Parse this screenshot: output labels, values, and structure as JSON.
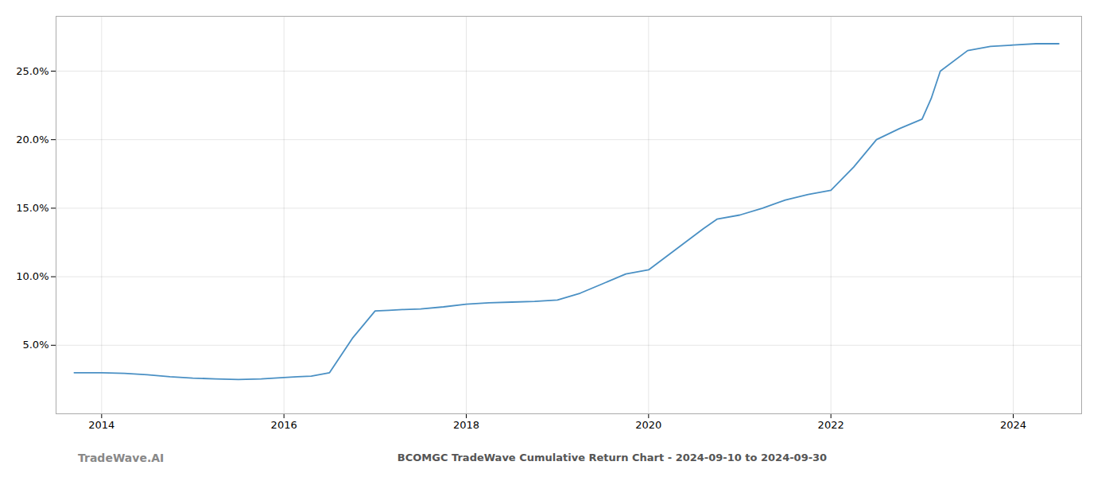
{
  "chart_data": {
    "type": "line",
    "title": "BCOMGC TradeWave Cumulative Return Chart - 2024-09-10 to 2024-09-30",
    "annotations": [
      "TradeWave.AI"
    ],
    "color": "#4a90c4",
    "x": [
      2013.7,
      2014.0,
      2014.25,
      2014.5,
      2014.75,
      2015.0,
      2015.25,
      2015.5,
      2015.75,
      2016.0,
      2016.15,
      2016.3,
      2016.5,
      2016.75,
      2017.0,
      2017.15,
      2017.3,
      2017.5,
      2017.75,
      2018.0,
      2018.25,
      2018.5,
      2018.75,
      2019.0,
      2019.25,
      2019.5,
      2019.75,
      2020.0,
      2020.2,
      2020.4,
      2020.6,
      2020.75,
      2021.0,
      2021.25,
      2021.5,
      2021.75,
      2022.0,
      2022.25,
      2022.5,
      2022.75,
      2023.0,
      2023.1,
      2023.2,
      2023.5,
      2023.75,
      2024.0,
      2024.25,
      2024.5
    ],
    "values": [
      3.0,
      3.0,
      2.95,
      2.85,
      2.7,
      2.6,
      2.55,
      2.5,
      2.55,
      2.65,
      2.7,
      2.75,
      3.0,
      5.5,
      7.5,
      7.55,
      7.6,
      7.65,
      7.8,
      8.0,
      8.1,
      8.15,
      8.2,
      8.3,
      8.8,
      9.5,
      10.2,
      10.5,
      11.5,
      12.5,
      13.5,
      14.2,
      14.5,
      15.0,
      15.6,
      16.0,
      16.3,
      18.0,
      20.0,
      20.8,
      21.5,
      23.0,
      25.0,
      26.5,
      26.8,
      26.9,
      27.0,
      27.0
    ],
    "xlim": [
      2013.5,
      2024.75
    ],
    "ylim": [
      0,
      29
    ],
    "xticks": [
      2014,
      2016,
      2018,
      2020,
      2022,
      2024
    ],
    "yticks": [
      {
        "value": 5.0,
        "label": "5.0%"
      },
      {
        "value": 10.0,
        "label": "10.0%"
      },
      {
        "value": 15.0,
        "label": "15.0%"
      },
      {
        "value": 20.0,
        "label": "20.0%"
      },
      {
        "value": 25.0,
        "label": "25.0%"
      }
    ],
    "grid": true
  }
}
